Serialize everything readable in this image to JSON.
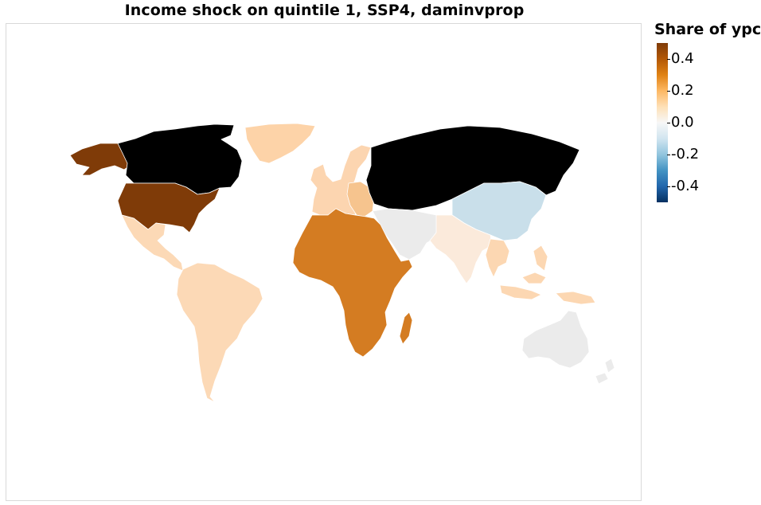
{
  "title": "Income shock on quintile 1, SSP4, daminvprop",
  "legend": {
    "title": "Share of ypc",
    "ticks": [
      {
        "label": "0.4",
        "value": 0.4
      },
      {
        "label": "0.2",
        "value": 0.2
      },
      {
        "label": "0.0",
        "value": 0.0
      },
      {
        "label": "-0.2",
        "value": -0.2
      },
      {
        "label": "-0.4",
        "value": -0.4
      }
    ],
    "range": [
      -0.5,
      0.5
    ],
    "gradient": [
      "#7f3b08",
      "#b35806",
      "#e08214",
      "#fdb863",
      "#fee0b6",
      "#f7f7f7",
      "#d1e5f0",
      "#92c5de",
      "#4393c3",
      "#2166ac",
      "#053061"
    ]
  },
  "colors": {
    "no_data": "#000000",
    "border": "#ffffff",
    "frame": "#d9d9d9"
  },
  "regions": [
    {
      "name": "Canada",
      "value": null,
      "color": "#000000"
    },
    {
      "name": "Russia and Central Asia",
      "value": null,
      "color": "#000000"
    },
    {
      "name": "Alaska",
      "value": 0.45,
      "color": "#7f3b08"
    },
    {
      "name": "USA",
      "value": 0.45,
      "color": "#7f3b08"
    },
    {
      "name": "Sub-Saharan and North Africa",
      "value": 0.3,
      "color": "#d47c22"
    },
    {
      "name": "Madagascar",
      "value": 0.3,
      "color": "#d47c22"
    },
    {
      "name": "Greenland",
      "value": 0.15,
      "color": "#fdd3a8"
    },
    {
      "name": "Central America",
      "value": 0.12,
      "color": "#fcd9b6"
    },
    {
      "name": "South America",
      "value": 0.12,
      "color": "#fcd9b6"
    },
    {
      "name": "Western Europe",
      "value": 0.12,
      "color": "#fcd5b0"
    },
    {
      "name": "Eastern Europe",
      "value": 0.18,
      "color": "#f6c48e"
    },
    {
      "name": "South Asia",
      "value": 0.05,
      "color": "#fbeadb"
    },
    {
      "name": "Southeast Asia",
      "value": 0.12,
      "color": "#fcd7b2"
    },
    {
      "name": "Middle East",
      "value": 0.0,
      "color": "#ebebeb"
    },
    {
      "name": "China",
      "value": -0.1,
      "color": "#c9dfea"
    },
    {
      "name": "Australia",
      "value": 0.0,
      "color": "#ebebeb"
    },
    {
      "name": "New Zealand",
      "value": 0.0,
      "color": "#ebebeb"
    }
  ]
}
